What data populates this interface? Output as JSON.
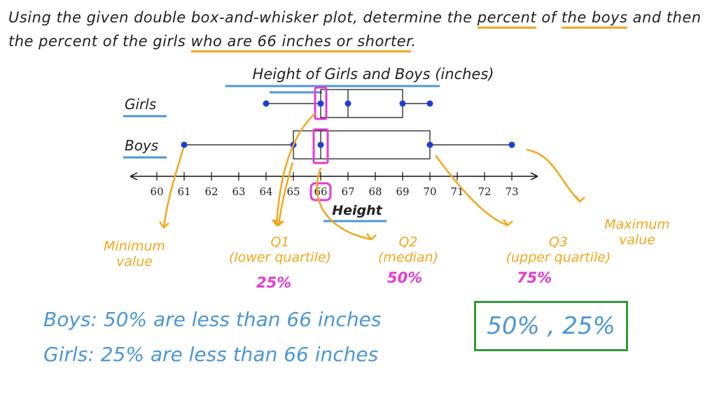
{
  "question": {
    "parts": [
      {
        "text": "Using the given double box-and-whisker plot, determine the ",
        "u": false
      },
      {
        "text": "percent",
        "u": true
      },
      {
        "text": " of ",
        "u": false
      },
      {
        "text": "the boys",
        "u": true
      },
      {
        "text": " and then the percent of the girls ",
        "u": false
      },
      {
        "text": "who are 66 inches or shorter",
        "u": true
      },
      {
        "text": ".",
        "u": false
      }
    ]
  },
  "chart_data": {
    "type": "boxplot",
    "title": "Height of Girls and Boys (inches)",
    "xlabel": "Height",
    "xlim": [
      60,
      73
    ],
    "ticks": [
      60,
      61,
      62,
      63,
      64,
      65,
      66,
      67,
      68,
      69,
      70,
      71,
      72,
      73
    ],
    "series": [
      {
        "name": "Girls",
        "min": 64,
        "q1": 66,
        "median": 67,
        "q3": 69,
        "max": 70
      },
      {
        "name": "Boys",
        "min": 61,
        "q1": 65,
        "median": 66,
        "q3": 70,
        "max": 73
      }
    ],
    "highlight_value": 66,
    "colors": {
      "annotation": "#f2a81d",
      "highlight": "#e23bd5",
      "point": "#1f3fd6",
      "text": "#4c97d6",
      "answer_border": "#2e9b3a"
    }
  },
  "annotations": {
    "min_label": "Minimum\nvalue",
    "q1_label": "Q1\n(lower quartile)",
    "q1_pct": "25%",
    "q2_label": "Q2\n(median)",
    "q2_pct": "50%",
    "q3_label": "Q3\n(upper quartile)",
    "q3_pct": "75%",
    "max_label": "Maximum\nvalue"
  },
  "summary": {
    "boys": "Boys:  50% are less than 66 inches",
    "girls": "Girls:  25% are less than 66 inches"
  },
  "answer": "50% , 25%"
}
